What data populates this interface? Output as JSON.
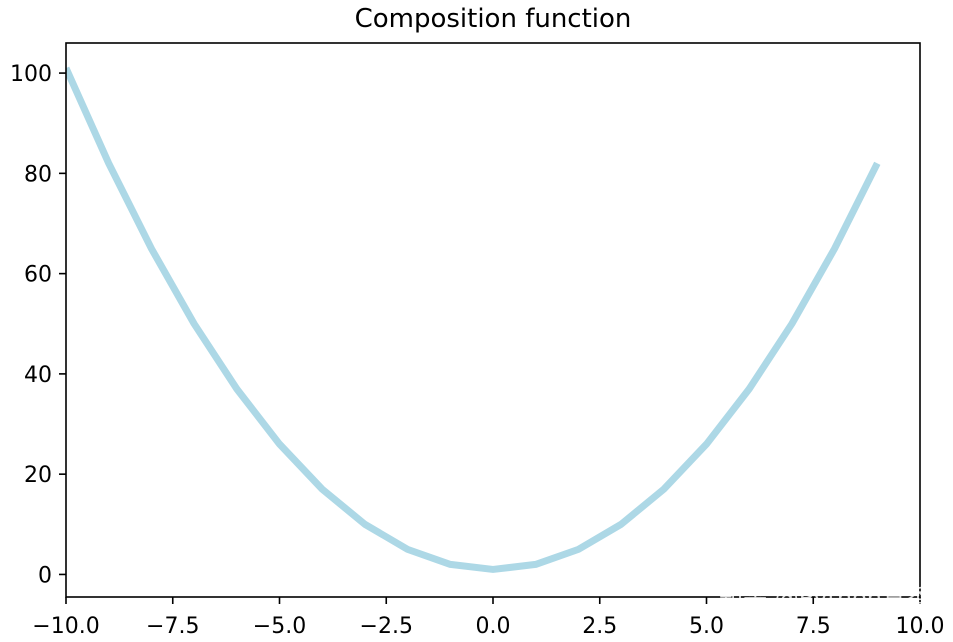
{
  "chart_data": {
    "type": "line",
    "title": "Composition function",
    "xlabel": "",
    "ylabel": "",
    "xlim": [
      -10.0,
      10.0
    ],
    "ylim": [
      -4.5,
      106
    ],
    "x_ticks": [
      -10.0,
      -7.5,
      -5.0,
      -2.5,
      0.0,
      2.5,
      5.0,
      7.5,
      10.0
    ],
    "x_tick_labels": [
      "−10.0",
      "−7.5",
      "−5.0",
      "−2.5",
      "0.0",
      "2.5",
      "5.0",
      "7.5",
      "10.0"
    ],
    "y_ticks": [
      0,
      20,
      40,
      60,
      80,
      100
    ],
    "y_tick_labels": [
      "0",
      "20",
      "40",
      "60",
      "80",
      "100"
    ],
    "grid": false,
    "line_color": "#add8e6",
    "series": [
      {
        "x": [
          -10,
          -9,
          -8,
          -7,
          -6,
          -5,
          -4,
          -3,
          -2,
          -1,
          0,
          1,
          2,
          3,
          4,
          5,
          6,
          7,
          8,
          9
        ],
        "y": [
          101,
          82,
          65,
          50,
          37,
          26,
          17,
          10,
          5,
          2,
          1,
          2,
          5,
          10,
          17,
          26,
          37,
          50,
          65,
          82
        ]
      }
    ]
  },
  "watermark": "知乎 @Python真香"
}
